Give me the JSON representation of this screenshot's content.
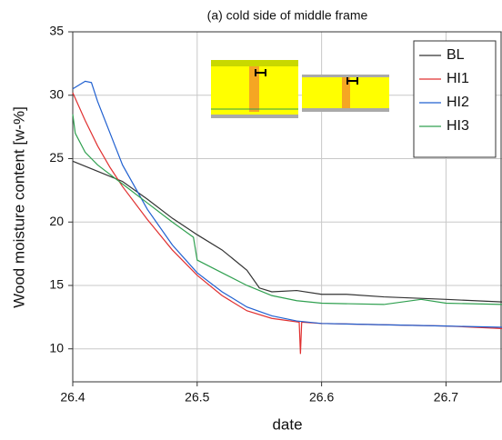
{
  "chart_data": {
    "type": "line",
    "title": "(a) cold side of middle frame",
    "xlabel": "date",
    "ylabel": "Wood moisture content [w-%]",
    "xlim": [
      26.4,
      26.745
    ],
    "ylim": [
      7.4,
      35
    ],
    "xticks": [
      26.4,
      26.5,
      26.6,
      26.7
    ],
    "yticks": [
      10,
      15,
      20,
      25,
      30,
      35
    ],
    "grid": true,
    "legend": "upper right",
    "series": [
      {
        "name": "BL",
        "color": "#333333",
        "x": [
          26.4,
          26.42,
          26.44,
          26.46,
          26.48,
          26.5,
          26.52,
          26.54,
          26.55,
          26.56,
          26.58,
          26.6,
          26.62,
          26.65,
          26.7,
          26.745
        ],
        "values": [
          24.8,
          24.0,
          23.2,
          21.8,
          20.3,
          19.0,
          17.8,
          16.2,
          14.8,
          14.5,
          14.6,
          14.3,
          14.3,
          14.1,
          13.9,
          13.7
        ]
      },
      {
        "name": "HI1",
        "color": "#e03030",
        "x": [
          26.4,
          26.41,
          26.42,
          26.43,
          26.44,
          26.46,
          26.48,
          26.5,
          26.52,
          26.54,
          26.56,
          26.582,
          26.583,
          26.584,
          26.6,
          26.65,
          26.7,
          26.745
        ],
        "values": [
          30.2,
          28.0,
          26.0,
          24.3,
          22.8,
          20.2,
          17.8,
          15.8,
          14.2,
          13.0,
          12.4,
          12.1,
          9.6,
          12.1,
          12.0,
          11.9,
          11.8,
          11.6
        ]
      },
      {
        "name": "HI2",
        "color": "#2060d0",
        "x": [
          26.4,
          26.41,
          26.415,
          26.42,
          26.43,
          26.44,
          26.46,
          26.48,
          26.5,
          26.52,
          26.54,
          26.56,
          26.58,
          26.6,
          26.65,
          26.7,
          26.745
        ],
        "values": [
          30.5,
          31.1,
          31.0,
          29.5,
          27.0,
          24.5,
          21.0,
          18.2,
          16.0,
          14.5,
          13.3,
          12.6,
          12.2,
          12.0,
          11.9,
          11.8,
          11.7
        ]
      },
      {
        "name": "HI3",
        "color": "#30a050",
        "x": [
          26.4,
          26.402,
          26.41,
          26.42,
          26.44,
          26.46,
          26.48,
          26.497,
          26.5,
          26.52,
          26.54,
          26.56,
          26.58,
          26.6,
          26.65,
          26.68,
          26.7,
          26.745
        ],
        "values": [
          28.5,
          27.0,
          25.5,
          24.5,
          23.0,
          21.5,
          20.0,
          18.8,
          17.0,
          16.0,
          15.0,
          14.2,
          13.8,
          13.6,
          13.5,
          13.9,
          13.6,
          13.5
        ]
      }
    ]
  }
}
